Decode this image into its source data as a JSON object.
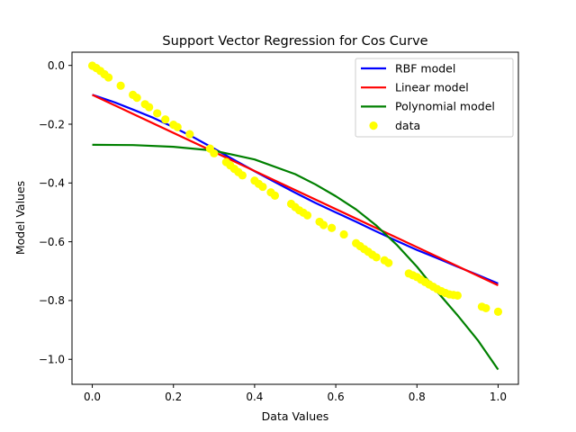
{
  "chart_data": {
    "type": "line",
    "title": "Support Vector Regression for Cos Curve",
    "xlabel": "Data Values",
    "ylabel": "Model Values",
    "xlim": [
      -0.05,
      1.05
    ],
    "ylim": [
      -1.085,
      0.045
    ],
    "x_ticks": [
      0.0,
      0.2,
      0.4,
      0.6,
      0.8,
      1.0
    ],
    "x_tick_labels": [
      "0.0",
      "0.2",
      "0.4",
      "0.6",
      "0.8",
      "1.0"
    ],
    "y_ticks": [
      0.0,
      -0.2,
      -0.4,
      -0.6,
      -0.8,
      -1.0
    ],
    "y_tick_labels": [
      "0.0",
      "−0.2",
      "−0.4",
      "−0.6",
      "−0.8",
      "−1.0"
    ],
    "grid": false,
    "legend_position": "top-right",
    "series": [
      {
        "name": "RBF model",
        "kind": "line",
        "color": "#0000ff",
        "x": [
          0.0,
          0.05,
          0.1,
          0.15,
          0.2,
          0.25,
          0.3,
          0.35,
          0.4,
          0.45,
          0.5,
          0.55,
          0.6,
          0.65,
          0.7,
          0.75,
          0.8,
          0.85,
          0.9,
          0.95,
          1.0
        ],
        "y": [
          -0.1,
          -0.123,
          -0.15,
          -0.178,
          -0.21,
          -0.245,
          -0.283,
          -0.322,
          -0.36,
          -0.397,
          -0.433,
          -0.468,
          -0.5,
          -0.532,
          -0.565,
          -0.597,
          -0.628,
          -0.656,
          -0.685,
          -0.713,
          -0.742
        ]
      },
      {
        "name": "Linear model",
        "kind": "line",
        "color": "#ff0000",
        "x": [
          0.0,
          1.0
        ],
        "y": [
          -0.1,
          -0.748
        ]
      },
      {
        "name": "Polynomial model",
        "kind": "line",
        "color": "#008000",
        "x": [
          0.0,
          0.1,
          0.2,
          0.3,
          0.4,
          0.5,
          0.55,
          0.6,
          0.65,
          0.7,
          0.75,
          0.8,
          0.85,
          0.9,
          0.95,
          1.0
        ],
        "y": [
          -0.27,
          -0.271,
          -0.277,
          -0.29,
          -0.32,
          -0.37,
          -0.405,
          -0.445,
          -0.49,
          -0.545,
          -0.61,
          -0.685,
          -0.77,
          -0.85,
          -0.935,
          -1.035
        ]
      },
      {
        "name": "data",
        "kind": "scatter",
        "color": "#ffff00",
        "x": [
          0.0,
          0.01,
          0.02,
          0.03,
          0.04,
          0.07,
          0.1,
          0.11,
          0.13,
          0.14,
          0.16,
          0.18,
          0.2,
          0.21,
          0.24,
          0.29,
          0.3,
          0.33,
          0.34,
          0.35,
          0.36,
          0.37,
          0.4,
          0.41,
          0.42,
          0.44,
          0.45,
          0.49,
          0.5,
          0.51,
          0.52,
          0.53,
          0.56,
          0.57,
          0.59,
          0.62,
          0.65,
          0.66,
          0.67,
          0.68,
          0.69,
          0.7,
          0.72,
          0.73,
          0.78,
          0.79,
          0.8,
          0.81,
          0.82,
          0.83,
          0.84,
          0.85,
          0.86,
          0.87,
          0.88,
          0.89,
          0.9,
          0.96,
          0.97,
          1.0
        ],
        "y": [
          -0.001,
          -0.009,
          -0.019,
          -0.03,
          -0.041,
          -0.069,
          -0.1,
          -0.11,
          -0.132,
          -0.142,
          -0.163,
          -0.184,
          -0.202,
          -0.21,
          -0.234,
          -0.283,
          -0.299,
          -0.329,
          -0.34,
          -0.352,
          -0.363,
          -0.374,
          -0.392,
          -0.403,
          -0.413,
          -0.432,
          -0.443,
          -0.471,
          -0.482,
          -0.493,
          -0.501,
          -0.51,
          -0.532,
          -0.543,
          -0.553,
          -0.575,
          -0.605,
          -0.615,
          -0.625,
          -0.634,
          -0.644,
          -0.653,
          -0.663,
          -0.672,
          -0.708,
          -0.714,
          -0.72,
          -0.729,
          -0.737,
          -0.745,
          -0.753,
          -0.761,
          -0.768,
          -0.774,
          -0.779,
          -0.781,
          -0.783,
          -0.821,
          -0.826,
          -0.838
        ]
      }
    ]
  }
}
